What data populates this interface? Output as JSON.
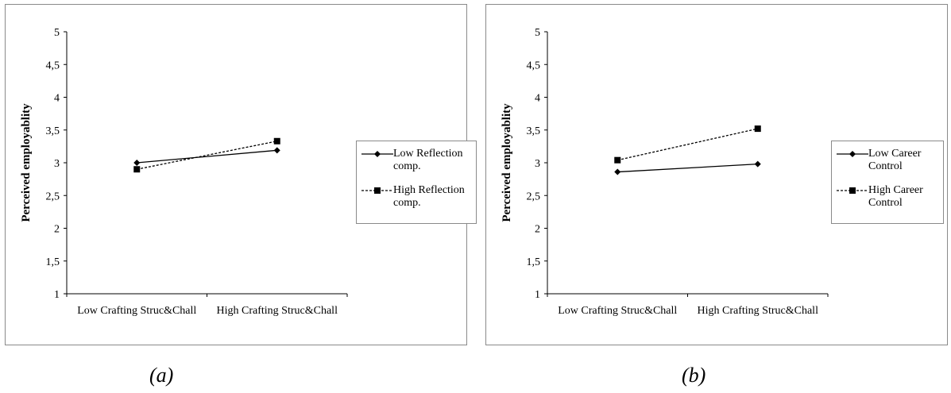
{
  "charts": [
    {
      "id": "a",
      "caption": "(a)",
      "legend": [
        {
          "label": "Low Reflection comp.",
          "style": "solid",
          "marker": "diamond"
        },
        {
          "label": "High Reflection comp.",
          "style": "dashed",
          "marker": "square"
        }
      ]
    },
    {
      "id": "b",
      "caption": "(b)",
      "legend": [
        {
          "label": "Low Career Control",
          "style": "solid",
          "marker": "diamond"
        },
        {
          "label": "High Career Control",
          "style": "dashed",
          "marker": "square"
        }
      ]
    }
  ],
  "chart_data": [
    {
      "type": "line",
      "title": "",
      "xlabel": "",
      "ylabel": "Perceived employablity",
      "categories": [
        "Low Crafting Struc&Chall",
        "High Crafting Struc&Chall"
      ],
      "ylim": [
        1,
        5
      ],
      "yticks": [
        "1",
        "1,5",
        "2",
        "2,5",
        "3",
        "3,5",
        "4",
        "4,5",
        "5"
      ],
      "grid": false,
      "legend_position": "right",
      "series": [
        {
          "name": "Low Reflection comp.",
          "values": [
            3.0,
            3.19
          ],
          "style": "solid",
          "marker": "diamond"
        },
        {
          "name": "High Reflection comp.",
          "values": [
            2.9,
            3.33
          ],
          "style": "dashed",
          "marker": "square"
        }
      ]
    },
    {
      "type": "line",
      "title": "",
      "xlabel": "",
      "ylabel": "Perceived employablity",
      "categories": [
        "Low Crafting Struc&Chall",
        "High Crafting Struc&Chall"
      ],
      "ylim": [
        1,
        5
      ],
      "yticks": [
        "1",
        "1,5",
        "2",
        "2,5",
        "3",
        "3,5",
        "4",
        "4,5",
        "5"
      ],
      "grid": false,
      "legend_position": "right",
      "series": [
        {
          "name": "Low Career Control",
          "values": [
            2.86,
            2.98
          ],
          "style": "solid",
          "marker": "diamond"
        },
        {
          "name": "High Career Control",
          "values": [
            3.04,
            3.52
          ],
          "style": "dashed",
          "marker": "square"
        }
      ]
    }
  ]
}
